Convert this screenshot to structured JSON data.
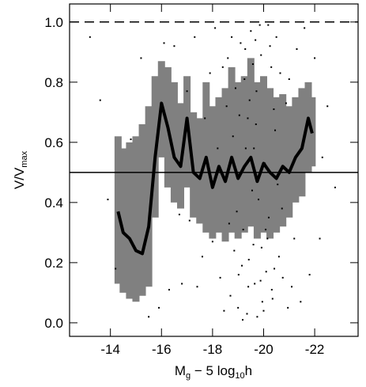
{
  "chart_data": {
    "type": "scatter",
    "xlabel_parts": [
      "M",
      "g",
      " − 5 log",
      "10",
      "h"
    ],
    "ylabel_parts": [
      "V/V",
      "max"
    ],
    "xlim": [
      -12.4,
      -23.7
    ],
    "ylim": [
      -0.045,
      1.06
    ],
    "xticks": [
      -14,
      -16,
      -18,
      -20,
      -22
    ],
    "yticks": [
      {
        "value": 0,
        "label": "0.0"
      },
      0.2,
      0.4,
      0.6,
      0.8,
      {
        "value": 1,
        "label": "1.0"
      }
    ],
    "hlines": [
      {
        "value": 1,
        "style": "dashed"
      },
      {
        "value": 0.5,
        "style": "solid"
      }
    ],
    "points": {
      "color": "#000000",
      "x": [
        -19.1,
        -19.4,
        -19.7,
        -20.0,
        -20.3,
        -19.2,
        -18.9,
        -20.6,
        -19.5,
        -19.8,
        -20.1,
        -19.3,
        -18.7,
        -20.4,
        -19.6,
        -19.9,
        -20.2,
        -18.8,
        -19.0,
        -20.5,
        -19.45,
        -19.75,
        -20.05,
        -19.15,
        -20.35,
        -18.6,
        -19.55,
        -20.75,
        -19.85,
        -19.25,
        -20.15,
        -18.95,
        -19.65,
        -20.45,
        -19.05,
        -19.95,
        -20.25,
        -19.35,
        -18.85,
        -20.65,
        -19.72,
        -20.08,
        -19.42,
        -19.18,
        -20.55,
        -18.75,
        -19.58,
        -20.88,
        -19.88,
        -20.32,
        -19.28,
        -18.65,
        -20.95,
        -19.62,
        -20.18,
        -19.02,
        -20.72,
        -19.38,
        -19.92,
        -18.55,
        -20.42,
        -19.68,
        -21.1,
        -18.4,
        -21.2,
        -18.3,
        -21.3,
        -18.2,
        -21.0,
        -18.45,
        -16.5,
        -15.2,
        -14.8,
        -13.6,
        -13.2,
        -14.2,
        -16.8,
        -17.3,
        -17.6,
        -17.9,
        -15.9,
        -16.3,
        -17.1,
        -21.6,
        -22.2,
        -22.5,
        -22.8,
        -21.8,
        -22.0,
        -17.7,
        -17.4,
        -16.1,
        -13.9,
        -15.5,
        -17.0,
        -21.45,
        -22.3,
        -18.1,
        -18.0,
        -16.7
      ],
      "y": [
        0.93,
        0.12,
        0.66,
        0.04,
        0.85,
        0.31,
        0.78,
        0.22,
        0.97,
        0.41,
        0.17,
        0.58,
        0.09,
        0.71,
        0.26,
        0.89,
        0.35,
        0.62,
        0.05,
        0.95,
        0.74,
        0.02,
        0.53,
        0.19,
        0.08,
        0.88,
        0.44,
        0.15,
        0.99,
        0.81,
        0.28,
        0.37,
        0.13,
        0.64,
        0.69,
        0.07,
        0.92,
        0.03,
        0.24,
        0.83,
        0.77,
        0.31,
        0.21,
        0.01,
        0.46,
        0.95,
        0.86,
        0.73,
        0.14,
        0.11,
        0.91,
        0.33,
        0.05,
        0.58,
        0.99,
        0.16,
        0.38,
        0.68,
        0.25,
        0.72,
        0.18,
        0.94,
        0.12,
        0.85,
        0.28,
        0.15,
        0.91,
        0.58,
        0.81,
        0.04,
        0.92,
        0.88,
        0.61,
        0.74,
        0.95,
        0.18,
        0.13,
        0.95,
        0.22,
        0.83,
        0.05,
        0.11,
        0.34,
        0.98,
        0.28,
        0.72,
        0.45,
        0.16,
        0.88,
        0.68,
        0.12,
        0.93,
        0.41,
        0.02,
        0.77,
        0.07,
        0.55,
        0.98,
        0.27,
        0.36
      ]
    },
    "mean": {
      "color": "#000000",
      "band_color": "#808080",
      "x": [
        -14.3,
        -14.5,
        -14.75,
        -15.0,
        -15.25,
        -15.5,
        -15.75,
        -16.0,
        -16.25,
        -16.5,
        -16.75,
        -17.0,
        -17.25,
        -17.5,
        -17.75,
        -18.0,
        -18.25,
        -18.5,
        -18.75,
        -19.0,
        -19.25,
        -19.5,
        -19.75,
        -20.0,
        -20.25,
        -20.5,
        -20.75,
        -21.0,
        -21.25,
        -21.5,
        -21.75,
        -21.9
      ],
      "values": [
        0.37,
        0.3,
        0.28,
        0.24,
        0.23,
        0.32,
        0.55,
        0.73,
        0.65,
        0.55,
        0.52,
        0.68,
        0.5,
        0.48,
        0.55,
        0.45,
        0.52,
        0.47,
        0.55,
        0.48,
        0.52,
        0.55,
        0.47,
        0.53,
        0.5,
        0.48,
        0.52,
        0.5,
        0.55,
        0.58,
        0.68,
        0.63
      ],
      "lower": [
        0.13,
        0.1,
        0.08,
        0.07,
        0.09,
        0.12,
        0.35,
        0.55,
        0.45,
        0.4,
        0.38,
        0.45,
        0.35,
        0.33,
        0.3,
        0.28,
        0.3,
        0.27,
        0.3,
        0.28,
        0.3,
        0.32,
        0.28,
        0.3,
        0.28,
        0.3,
        0.32,
        0.35,
        0.4,
        0.42,
        0.5,
        0.52
      ],
      "upper": [
        0.62,
        0.58,
        0.6,
        0.62,
        0.66,
        0.72,
        0.82,
        0.87,
        0.85,
        0.8,
        0.73,
        0.82,
        0.7,
        0.68,
        0.8,
        0.72,
        0.75,
        0.78,
        0.85,
        0.8,
        0.82,
        0.88,
        0.8,
        0.82,
        0.78,
        0.75,
        0.76,
        0.72,
        0.75,
        0.78,
        0.8,
        0.75
      ]
    }
  }
}
